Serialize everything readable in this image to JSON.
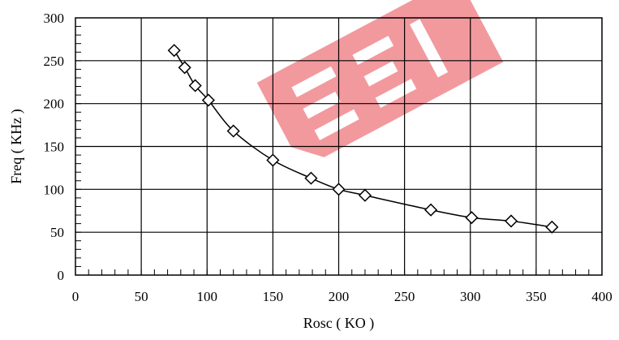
{
  "chart_data": {
    "type": "line",
    "title": "",
    "xlabel": "Rosc ( KO  )",
    "ylabel": "Freq ( KHz )",
    "xlim": [
      0,
      400
    ],
    "ylim": [
      0,
      300
    ],
    "x_ticks": [
      "0",
      "50",
      "100",
      "150",
      "200",
      "250",
      "300",
      "350",
      "400"
    ],
    "y_ticks": [
      "0",
      "50",
      "100",
      "150",
      "200",
      "250",
      "300"
    ],
    "grid": true,
    "marker": "diamond",
    "series": [
      {
        "x": [
          75,
          83,
          91,
          101,
          120,
          150,
          179,
          200,
          220,
          270,
          301,
          331,
          362
        ],
        "y": [
          262,
          242,
          221,
          204,
          168,
          134,
          113,
          100,
          93,
          76,
          67,
          63,
          56
        ]
      }
    ]
  },
  "watermark": {
    "color": "#e8474f"
  }
}
